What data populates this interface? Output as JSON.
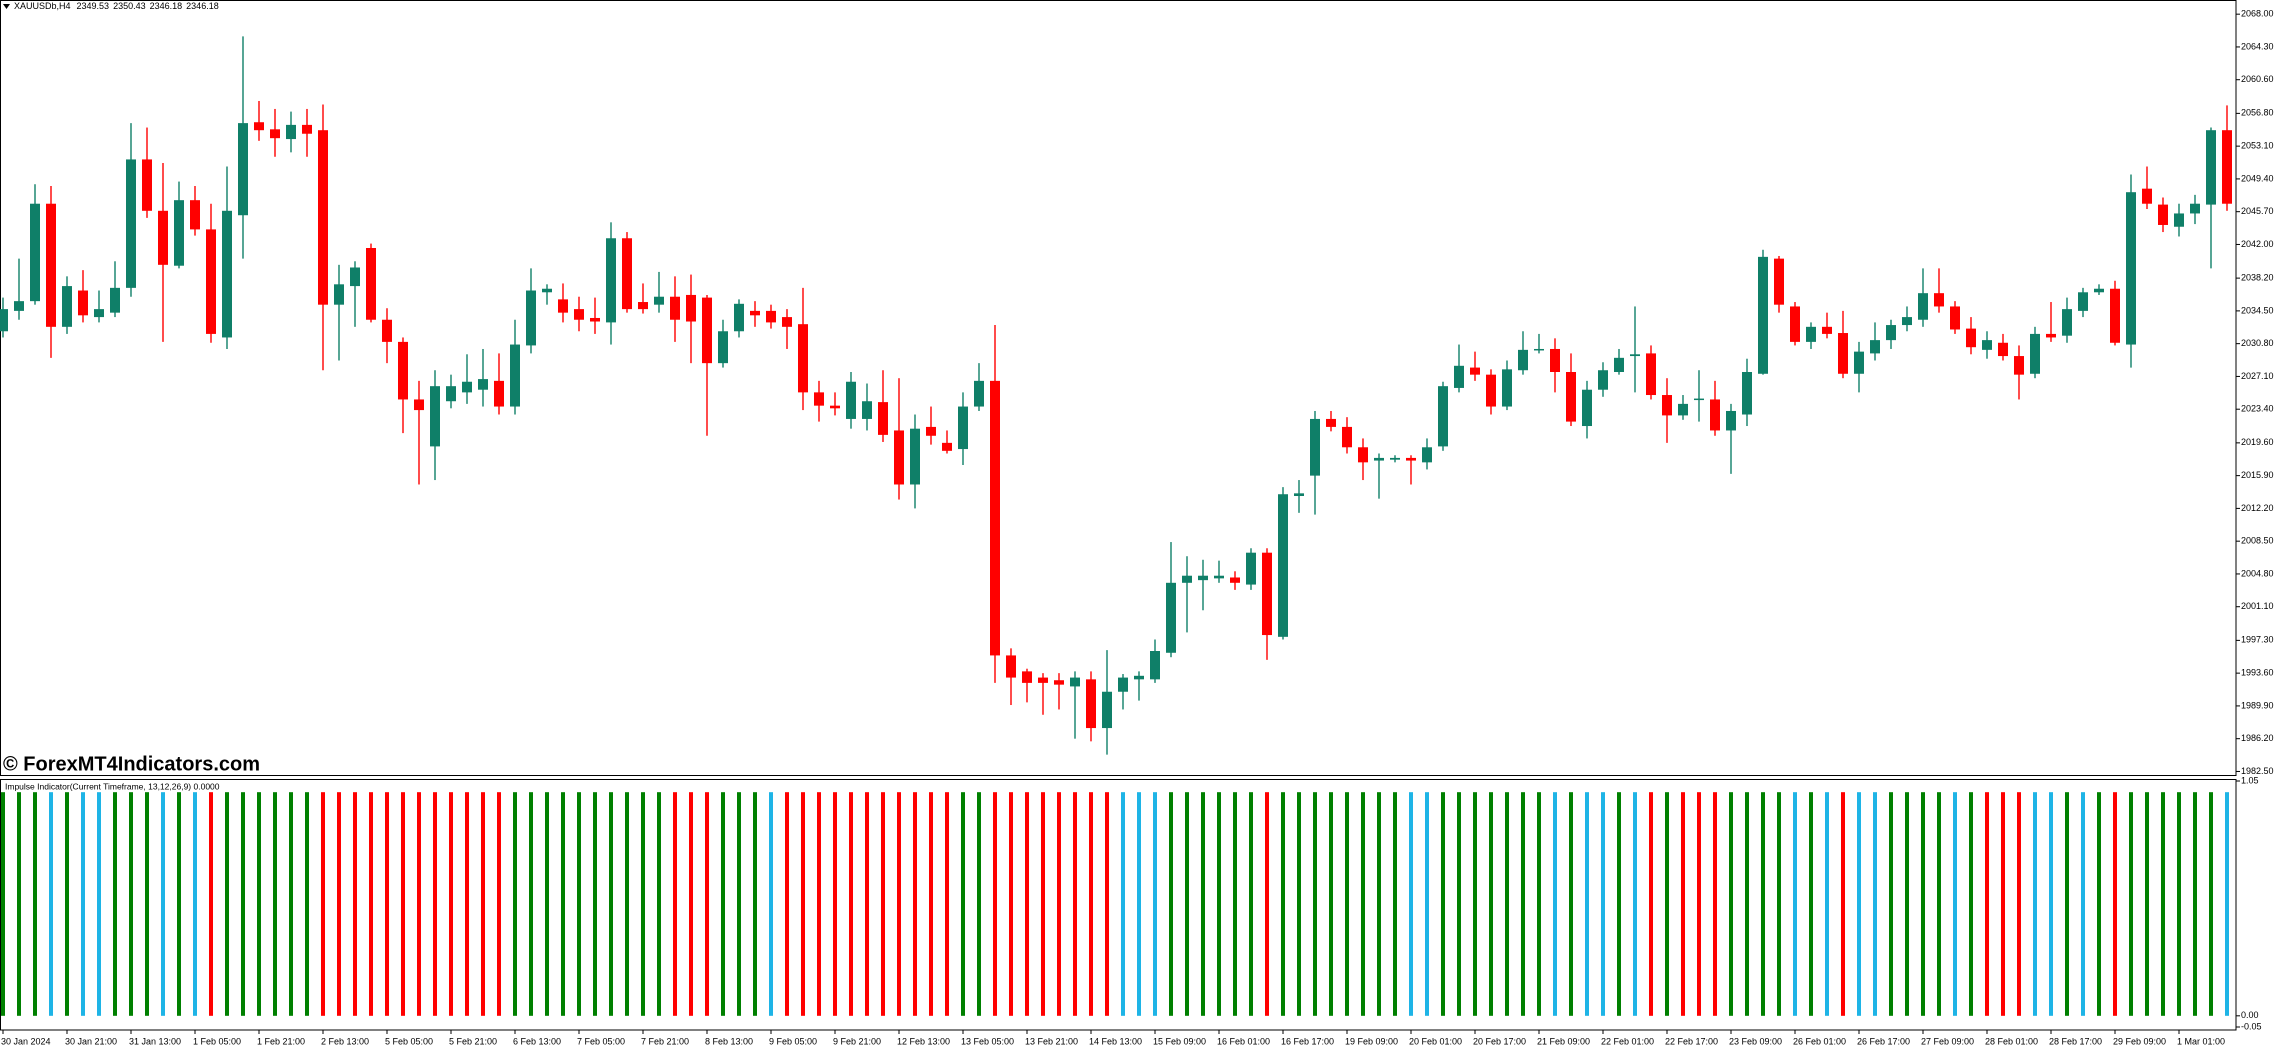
{
  "chart_data": [
    {
      "type": "candlestick",
      "title": "XAUUSDb,H4",
      "last_bar": [
        2349.53,
        2350.43,
        2346.18,
        2346.18
      ],
      "watermark": "© ForexMT4Indicators.com",
      "up_color": "#0f7f68",
      "down_color": "#ff0000",
      "ylim": [
        1982.1,
        2069.6
      ],
      "yticks": [
        {
          "value": 2068,
          "label": "2068.00"
        },
        {
          "value": 2064.3,
          "label": "2064.30"
        },
        {
          "value": 2060.6,
          "label": "2060.60"
        },
        {
          "value": 2056.8,
          "label": "2056.80"
        },
        {
          "value": 2053.1,
          "label": "2053.10"
        },
        {
          "value": 2049.4,
          "label": "2049.40"
        },
        {
          "value": 2045.7,
          "label": "2045.70"
        },
        {
          "value": 2042,
          "label": "2042.00"
        },
        {
          "value": 2038.2,
          "label": "2038.20"
        },
        {
          "value": 2034.5,
          "label": "2034.50"
        },
        {
          "value": 2030.8,
          "label": "2030.80"
        },
        {
          "value": 2027.1,
          "label": "2027.10"
        },
        {
          "value": 2023.4,
          "label": "2023.40"
        },
        {
          "value": 2019.6,
          "label": "2019.60"
        },
        {
          "value": 2015.9,
          "label": "2015.90"
        },
        {
          "value": 2012.2,
          "label": "2012.20"
        },
        {
          "value": 2008.5,
          "label": "2008.50"
        },
        {
          "value": 2004.8,
          "label": "2004.80"
        },
        {
          "value": 2001.1,
          "label": "2001.10"
        },
        {
          "value": 1997.3,
          "label": "1997.30"
        },
        {
          "value": 1993.6,
          "label": "1993.60"
        },
        {
          "value": 1989.9,
          "label": "1989.90"
        },
        {
          "value": 1986.2,
          "label": "1986.20"
        },
        {
          "value": 1982.5,
          "label": "1982.50"
        }
      ],
      "categories": [
        "30 Jan 2024",
        null,
        null,
        null,
        "30 Jan 21:00",
        null,
        null,
        null,
        "31 Jan 13:00",
        null,
        null,
        null,
        "1 Feb 05:00",
        null,
        null,
        null,
        "1 Feb 21:00",
        null,
        null,
        null,
        "2 Feb 13:00",
        null,
        null,
        null,
        "5 Feb 05:00",
        null,
        null,
        null,
        "5 Feb 21:00",
        null,
        null,
        null,
        "6 Feb 13:00",
        null,
        null,
        null,
        "7 Feb 05:00",
        null,
        null,
        null,
        "7 Feb 21:00",
        null,
        null,
        null,
        "8 Feb 13:00",
        null,
        null,
        null,
        "9 Feb 05:00",
        null,
        null,
        null,
        "9 Feb 21:00",
        null,
        null,
        null,
        "12 Feb 13:00",
        null,
        null,
        null,
        "13 Feb 05:00",
        null,
        null,
        null,
        "13 Feb 21:00",
        null,
        null,
        null,
        "14 Feb 13:00",
        null,
        null,
        null,
        "15 Feb 09:00",
        null,
        null,
        null,
        "16 Feb 01:00",
        null,
        null,
        null,
        "16 Feb 17:00",
        null,
        null,
        null,
        "19 Feb 09:00",
        null,
        null,
        null,
        "20 Feb 01:00",
        null,
        null,
        null,
        "20 Feb 17:00",
        null,
        null,
        null,
        "21 Feb 09:00",
        null,
        null,
        null,
        "22 Feb 01:00",
        null,
        null,
        null,
        "22 Feb 17:00",
        null,
        null,
        null,
        "23 Feb 09:00",
        null,
        null,
        null,
        "26 Feb 01:00",
        null,
        null,
        null,
        "26 Feb 17:00",
        null,
        null,
        null,
        "27 Feb 09:00",
        null,
        null,
        null,
        "28 Feb 01:00",
        null,
        null,
        null,
        "28 Feb 17:00",
        null,
        null,
        null,
        "29 Feb 09:00",
        null,
        null,
        null,
        "1 Mar 01:00",
        null,
        null,
        null
      ],
      "open": [
        2032.2,
        2034.5,
        2035.6,
        2046.6,
        2032.7,
        2036.8,
        2033.8,
        2034.3,
        2037.1,
        2051.6,
        2045.8,
        2039.6,
        2047.0,
        2043.7,
        2031.5,
        2045.3,
        2055.8,
        2055.0,
        2053.9,
        2055.5,
        2054.9,
        2035.2,
        2037.3,
        2041.6,
        2033.5,
        2031.0,
        2024.5,
        2019.2,
        2024.3,
        2025.3,
        2025.6,
        2026.6,
        2023.7,
        2030.6,
        2036.6,
        2035.8,
        2034.7,
        2033.7,
        2033.2,
        2042.7,
        2035.5,
        2035.2,
        2036.1,
        2036.3,
        2036.0,
        2028.6,
        2032.2,
        2034.5,
        2034.5,
        2033.8,
        2033.0,
        2025.3,
        2023.8,
        2022.3,
        2022.3,
        2024.2,
        2021.0,
        2014.9,
        2021.4,
        2019.6,
        2018.9,
        2023.7,
        2026.6,
        1995.6,
        1993.8,
        1993.1,
        1992.8,
        1992.1,
        1992.9,
        1987.4,
        1991.5,
        1992.9,
        1992.9,
        1995.9,
        2003.8,
        2004.1,
        2004.3,
        2004.4,
        2003.6,
        2007.2,
        1997.7,
        2013.6,
        2015.9,
        2022.3,
        2021.4,
        2019.1,
        2017.6,
        2017.7,
        2017.9,
        2017.4,
        2019.2,
        2025.8,
        2028.1,
        2027.3,
        2023.7,
        2027.8,
        2030.1,
        2030.2,
        2027.6,
        2021.5,
        2025.6,
        2027.6,
        2029.4,
        2029.7,
        2025.0,
        2022.7,
        2024.5,
        2024.5,
        2021.0,
        2022.8,
        2027.4,
        2040.4,
        2035.0,
        2031.0,
        2032.7,
        2032.0,
        2027.4,
        2029.7,
        2031.2,
        2032.9,
        2033.5,
        2036.5,
        2035.0,
        2032.5,
        2030.1,
        2030.9,
        2029.4,
        2027.4,
        2031.9,
        2031.7,
        2034.5,
        2036.6,
        2037.0,
        2030.7,
        2048.3,
        2046.5,
        2044.0,
        2045.5,
        2046.5,
        2054.9
      ],
      "high": [
        2036.0,
        2040.4,
        2048.8,
        2048.6,
        2038.4,
        2039.1,
        2036.8,
        2040.1,
        2055.7,
        2055.2,
        2051.2,
        2049.1,
        2048.6,
        2046.6,
        2050.8,
        2065.5,
        2058.2,
        2057.3,
        2057.0,
        2057.3,
        2057.8,
        2039.7,
        2040.1,
        2042.1,
        2034.8,
        2031.5,
        2026.6,
        2027.8,
        2027.3,
        2029.6,
        2030.2,
        2029.7,
        2033.5,
        2039.3,
        2037.5,
        2037.6,
        2036.1,
        2036.0,
        2044.5,
        2043.4,
        2037.6,
        2038.9,
        2038.4,
        2038.6,
        2036.3,
        2033.5,
        2035.8,
        2035.6,
        2035.2,
        2034.7,
        2037.1,
        2026.6,
        2025.3,
        2027.6,
        2026.3,
        2027.8,
        2026.9,
        2022.8,
        2023.7,
        2021.0,
        2025.3,
        2028.6,
        2032.9,
        1996.4,
        1994.1,
        1993.6,
        1993.6,
        1993.8,
        1993.8,
        1996.2,
        1993.5,
        1993.8,
        1997.4,
        2008.4,
        2006.8,
        2006.4,
        2006.3,
        2005.1,
        2007.7,
        2007.7,
        2014.6,
        2015.4,
        2023.2,
        2023.2,
        2022.5,
        2020.1,
        2018.4,
        2018.2,
        2018.2,
        2020.1,
        2026.5,
        2030.7,
        2029.9,
        2027.9,
        2028.9,
        2032.2,
        2031.9,
        2031.4,
        2029.7,
        2026.6,
        2028.7,
        2030.2,
        2035.0,
        2030.6,
        2026.9,
        2025.0,
        2027.8,
        2026.6,
        2024.0,
        2029.1,
        2041.4,
        2040.7,
        2035.5,
        2033.2,
        2034.3,
        2034.5,
        2031.0,
        2033.2,
        2033.5,
        2035.0,
        2039.3,
        2039.3,
        2035.6,
        2033.8,
        2032.2,
        2031.9,
        2030.6,
        2032.7,
        2035.5,
        2036.0,
        2037.1,
        2037.5,
        2037.9,
        2049.9,
        2050.8,
        2047.3,
        2046.6,
        2047.6,
        2055.2,
        2057.7
      ],
      "low": [
        2031.5,
        2033.5,
        2035.2,
        2029.2,
        2031.9,
        2033.2,
        2033.2,
        2033.8,
        2036.1,
        2045.0,
        2031.0,
        2039.3,
        2043.0,
        2030.9,
        2030.2,
        2040.4,
        2053.7,
        2051.9,
        2052.4,
        2051.9,
        2027.8,
        2028.9,
        2032.7,
        2033.2,
        2028.6,
        2020.7,
        2014.9,
        2015.4,
        2023.5,
        2024.0,
        2023.7,
        2022.8,
        2022.8,
        2029.7,
        2035.2,
        2033.2,
        2032.2,
        2031.9,
        2030.7,
        2034.3,
        2034.2,
        2034.3,
        2031.0,
        2028.6,
        2020.4,
        2028.1,
        2031.5,
        2032.7,
        2032.5,
        2030.2,
        2023.3,
        2022.0,
        2022.7,
        2021.2,
        2021.0,
        2019.7,
        2013.2,
        2012.2,
        2019.4,
        2018.4,
        2017.1,
        2023.2,
        1992.5,
        1990.0,
        1990.3,
        1988.9,
        1989.5,
        1986.2,
        1985.9,
        1984.4,
        1989.5,
        1990.5,
        1992.5,
        1995.4,
        1998.2,
        2000.7,
        2003.8,
        2003.0,
        2003.0,
        1995.1,
        1997.4,
        2011.7,
        2011.5,
        2020.9,
        2018.4,
        2015.4,
        2013.3,
        2017.4,
        2014.9,
        2016.6,
        2018.7,
        2025.3,
        2026.6,
        2022.8,
        2023.3,
        2027.3,
        2029.7,
        2025.3,
        2021.5,
        2020.1,
        2024.8,
        2027.3,
        2025.3,
        2024.5,
        2019.6,
        2022.2,
        2022.0,
        2020.4,
        2016.1,
        2021.5,
        2027.3,
        2034.3,
        2030.6,
        2030.2,
        2031.4,
        2026.9,
        2025.3,
        2028.9,
        2030.2,
        2032.2,
        2032.7,
        2034.3,
        2031.9,
        2029.6,
        2029.1,
        2028.9,
        2024.5,
        2026.9,
        2031.0,
        2030.9,
        2033.8,
        2036.3,
        2030.6,
        2028.1,
        2046.0,
        2043.4,
        2042.9,
        2044.3,
        2039.3,
        2045.8
      ],
      "close": [
        2034.7,
        2035.6,
        2046.6,
        2032.7,
        2037.3,
        2034.0,
        2034.7,
        2037.1,
        2051.6,
        2045.8,
        2039.7,
        2047.0,
        2043.7,
        2031.9,
        2045.8,
        2055.7,
        2054.9,
        2054.0,
        2055.5,
        2054.5,
        2035.2,
        2037.5,
        2039.4,
        2033.5,
        2031.0,
        2024.5,
        2023.3,
        2026.0,
        2026.0,
        2026.5,
        2026.8,
        2023.7,
        2030.7,
        2036.8,
        2037.0,
        2034.3,
        2033.5,
        2033.3,
        2042.7,
        2034.7,
        2034.7,
        2036.1,
        2033.5,
        2033.3,
        2028.6,
        2032.2,
        2035.3,
        2034.0,
        2033.2,
        2032.7,
        2025.3,
        2023.8,
        2023.5,
        2026.5,
        2024.3,
        2020.5,
        2014.9,
        2021.2,
        2020.4,
        2018.7,
        2023.7,
        2026.6,
        1995.6,
        1993.1,
        1992.5,
        1992.5,
        1992.3,
        1993.1,
        1987.4,
        1991.5,
        1993.1,
        1993.3,
        1996.1,
        2003.8,
        2004.6,
        2004.6,
        2004.6,
        2003.8,
        2007.2,
        1997.9,
        2013.8,
        2013.9,
        2022.3,
        2021.4,
        2019.1,
        2017.4,
        2017.9,
        2017.9,
        2017.6,
        2019.1,
        2026.0,
        2028.3,
        2027.3,
        2023.7,
        2027.9,
        2030.1,
        2030.2,
        2027.6,
        2022.0,
        2025.6,
        2027.8,
        2029.2,
        2029.6,
        2025.0,
        2022.7,
        2024.0,
        2024.6,
        2021.0,
        2023.2,
        2027.6,
        2040.6,
        2035.2,
        2031.0,
        2032.7,
        2031.9,
        2027.4,
        2029.9,
        2031.2,
        2032.9,
        2033.8,
        2036.5,
        2035.0,
        2032.4,
        2030.4,
        2031.2,
        2029.4,
        2027.3,
        2031.9,
        2031.5,
        2034.7,
        2036.6,
        2037.0,
        2030.9,
        2047.9,
        2046.6,
        2044.2,
        2045.5,
        2046.6,
        2054.9,
        2046.6
      ]
    },
    {
      "type": "bar",
      "title": "Impulse Indicator(Current Timeframe, 13,12,26,9) 0.0000",
      "ylim": [
        -0.05,
        1.05
      ],
      "yticks": [
        1.05,
        {
          "value": 0,
          "label": "0.00"
        },
        -0.05
      ],
      "values": [
        1,
        1,
        1,
        1,
        1,
        1,
        1,
        1,
        1,
        1,
        1,
        1,
        1,
        1,
        1,
        1,
        1,
        1,
        1,
        1,
        1,
        1,
        1,
        1,
        1,
        1,
        1,
        1,
        1,
        1,
        1,
        1,
        1,
        1,
        1,
        1,
        1,
        1,
        1,
        1,
        1,
        1,
        1,
        1,
        1,
        1,
        1,
        1,
        1,
        1,
        1,
        1,
        1,
        1,
        1,
        1,
        1,
        1,
        1,
        1,
        1,
        1,
        1,
        1,
        1,
        1,
        1,
        1,
        1,
        1,
        1,
        1,
        1,
        1,
        1,
        1,
        1,
        1,
        1,
        1,
        1,
        1,
        1,
        1,
        1,
        1,
        1,
        1,
        1,
        1,
        1,
        1,
        1,
        1,
        1,
        1,
        1,
        1,
        1,
        1,
        1,
        1,
        1,
        1,
        1,
        1,
        1,
        1,
        1,
        1,
        1,
        1,
        1,
        1,
        1,
        1,
        1,
        1,
        1,
        1,
        1,
        1,
        1,
        1,
        1,
        1,
        1,
        1,
        1,
        1,
        1,
        1,
        1,
        1,
        1,
        1,
        1,
        1,
        1,
        1
      ],
      "colors": [
        "#008000",
        "#008000",
        "#008000",
        "#1eb4e6",
        "#008000",
        "#1eb4e6",
        "#1eb4e6",
        "#008000",
        "#008000",
        "#008000",
        "#1eb4e6",
        "#008000",
        "#1eb4e6",
        "#ff0000",
        "#008000",
        "#008000",
        "#008000",
        "#008000",
        "#008000",
        "#008000",
        "#ff0000",
        "#ff0000",
        "#ff0000",
        "#ff0000",
        "#ff0000",
        "#ff0000",
        "#ff0000",
        "#ff0000",
        "#ff0000",
        "#ff0000",
        "#ff0000",
        "#ff0000",
        "#008000",
        "#008000",
        "#008000",
        "#008000",
        "#008000",
        "#008000",
        "#008000",
        "#008000",
        "#008000",
        "#008000",
        "#ff0000",
        "#ff0000",
        "#ff0000",
        "#008000",
        "#008000",
        "#008000",
        "#1eb4e6",
        "#ff0000",
        "#ff0000",
        "#ff0000",
        "#ff0000",
        "#ff0000",
        "#ff0000",
        "#ff0000",
        "#ff0000",
        "#ff0000",
        "#ff0000",
        "#ff0000",
        "#008000",
        "#008000",
        "#ff0000",
        "#ff0000",
        "#ff0000",
        "#ff0000",
        "#ff0000",
        "#ff0000",
        "#ff0000",
        "#ff0000",
        "#1eb4e6",
        "#1eb4e6",
        "#1eb4e6",
        "#008000",
        "#008000",
        "#008000",
        "#008000",
        "#008000",
        "#008000",
        "#ff0000",
        "#008000",
        "#008000",
        "#008000",
        "#008000",
        "#008000",
        "#008000",
        "#008000",
        "#008000",
        "#1eb4e6",
        "#1eb4e6",
        "#008000",
        "#008000",
        "#008000",
        "#008000",
        "#008000",
        "#008000",
        "#008000",
        "#1eb4e6",
        "#008000",
        "#1eb4e6",
        "#1eb4e6",
        "#008000",
        "#1eb4e6",
        "#ff0000",
        "#008000",
        "#ff0000",
        "#ff0000",
        "#ff0000",
        "#008000",
        "#008000",
        "#008000",
        "#008000",
        "#1eb4e6",
        "#008000",
        "#1eb4e6",
        "#ff0000",
        "#1eb4e6",
        "#1eb4e6",
        "#008000",
        "#008000",
        "#008000",
        "#008000",
        "#1eb4e6",
        "#008000",
        "#ff0000",
        "#ff0000",
        "#ff0000",
        "#1eb4e6",
        "#1eb4e6",
        "#008000",
        "#1eb4e6",
        "#008000",
        "#ff0000",
        "#008000",
        "#008000",
        "#008000",
        "#008000",
        "#008000",
        "#008000",
        "#1eb4e6"
      ]
    }
  ]
}
